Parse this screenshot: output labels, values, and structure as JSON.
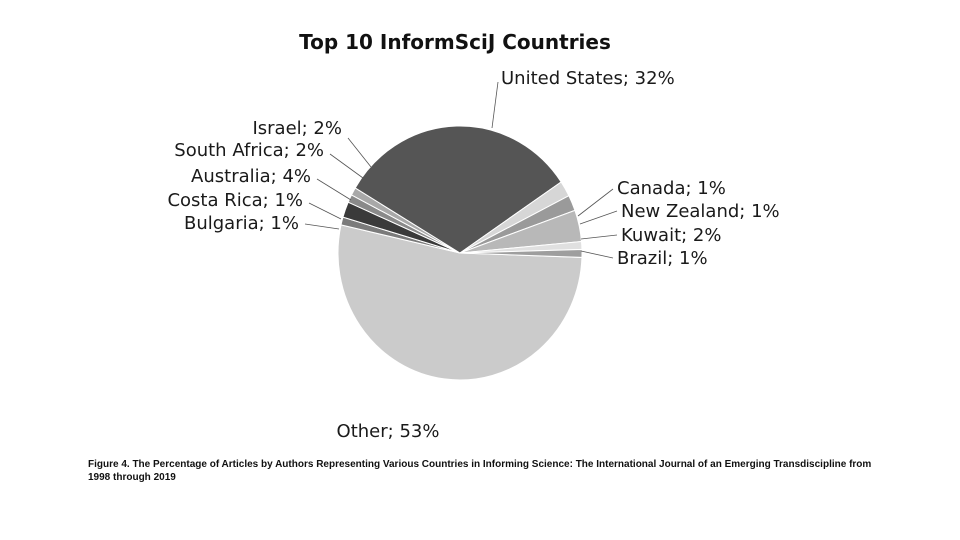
{
  "chart_data": {
    "type": "pie",
    "title": "Top 10 InformSciJ Countries",
    "slices": [
      {
        "label": "Other; 53%",
        "name": "Other",
        "value": 53,
        "color": "#cbcbcb"
      },
      {
        "label": "Brazil; 1%",
        "name": "Brazil",
        "value": 1,
        "color": "#7b7b7b"
      },
      {
        "label": "Kuwait; 2%",
        "name": "Kuwait",
        "value": 2,
        "color": "#3a3a3a"
      },
      {
        "label": "New Zealand; 1%",
        "name": "New Zealand",
        "value": 1,
        "color": "#8a8a8a"
      },
      {
        "label": "Canada; 1%",
        "name": "Canada",
        "value": 1,
        "color": "#a8a8a8"
      },
      {
        "label": "United States; 32%",
        "name": "United States",
        "value": 32,
        "color": "#555555"
      },
      {
        "label": "Israel; 2%",
        "name": "Israel",
        "value": 2,
        "color": "#d6d6d6"
      },
      {
        "label": "South Africa; 2%",
        "name": "South Africa",
        "value": 2,
        "color": "#9a9a9a"
      },
      {
        "label": "Australia; 4%",
        "name": "Australia",
        "value": 4,
        "color": "#b8b8b8"
      },
      {
        "label": "Costa Rica; 1%",
        "name": "Costa Rica",
        "value": 1,
        "color": "#e0e0e0"
      },
      {
        "label": "Bulgaria; 1%",
        "name": "Bulgaria",
        "value": 1,
        "color": "#9e9e9e"
      }
    ]
  },
  "caption": "Figure 4. The Percentage of Articles by Authors Representing Various Countries in Informing Science: The International Journal of an Emerging Transdiscipline from 1998 through 2019"
}
